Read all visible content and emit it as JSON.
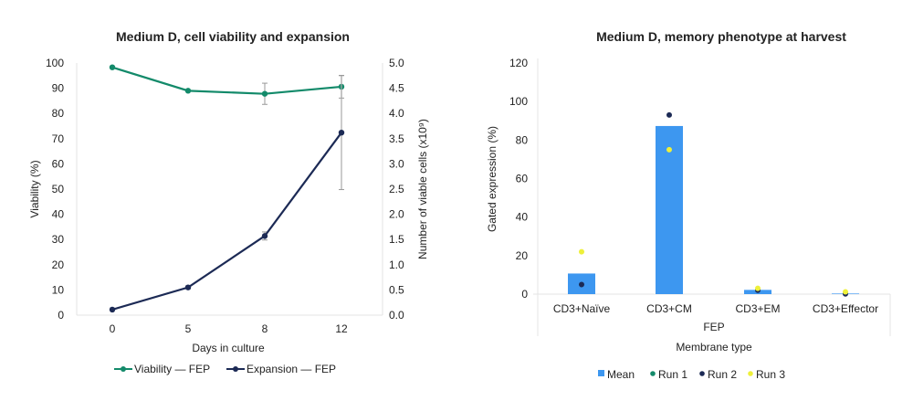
{
  "chart_data": [
    {
      "type": "line",
      "title": "Medium D, cell viability and expansion",
      "xlabel": "Days in culture",
      "ylabel": "Viability (%)",
      "y2label": "Number of  viable cells (x10⁹)",
      "categories": [
        "0",
        "5",
        "8",
        "12"
      ],
      "ylim": [
        0,
        100
      ],
      "yticks": [
        "0",
        "10",
        "20",
        "30",
        "40",
        "50",
        "60",
        "70",
        "80",
        "90",
        "100"
      ],
      "y2lim": [
        0,
        5
      ],
      "y2ticks": [
        "0.0",
        "0.5",
        "1.0",
        "1.5",
        "2.0",
        "2.5",
        "3.0",
        "3.5",
        "4.0",
        "4.5",
        "5.0"
      ],
      "grid": false,
      "legend_position": "bottom",
      "series": [
        {
          "name": "Viability — FEP",
          "axis": "left",
          "color": "#138a6a",
          "values": [
            98.3,
            89.0,
            87.8,
            90.6
          ],
          "error": [
            0,
            0,
            4.2,
            4.5
          ]
        },
        {
          "name": "Expansion — FEP",
          "axis": "right",
          "color": "#1c2a55",
          "values": [
            0.11,
            0.55,
            1.57,
            3.62
          ],
          "error": [
            0,
            0.03,
            0.08,
            1.13
          ]
        }
      ]
    },
    {
      "type": "bar",
      "title": "Medium D, memory phenotype at harvest",
      "xlabel": "Membrane type",
      "group_label": "FEP",
      "ylabel": "Gated expression (%)",
      "categories": [
        "CD3+Naïve",
        "CD3+CM",
        "CD3+EM",
        "CD3+Effector"
      ],
      "ylim": [
        0,
        120
      ],
      "yticks": [
        "0",
        "20",
        "40",
        "60",
        "80",
        "100",
        "120"
      ],
      "grid": false,
      "legend_position": "bottom",
      "series": [
        {
          "name": "Mean",
          "kind": "bar",
          "color": "#3d97f0",
          "values": [
            10.7,
            87.3,
            2.2,
            0.3
          ]
        },
        {
          "name": "Run 1",
          "kind": "point",
          "color": "#138a6a",
          "values": [
            null,
            null,
            null,
            null
          ]
        },
        {
          "name": "Run 2",
          "kind": "point",
          "color": "#1c2a55",
          "values": [
            5.0,
            93.0,
            2.0,
            0.1
          ]
        },
        {
          "name": "Run 3",
          "kind": "point",
          "color": "#eef03a",
          "values": [
            22.0,
            75.0,
            3.0,
            1.2
          ]
        }
      ]
    }
  ]
}
